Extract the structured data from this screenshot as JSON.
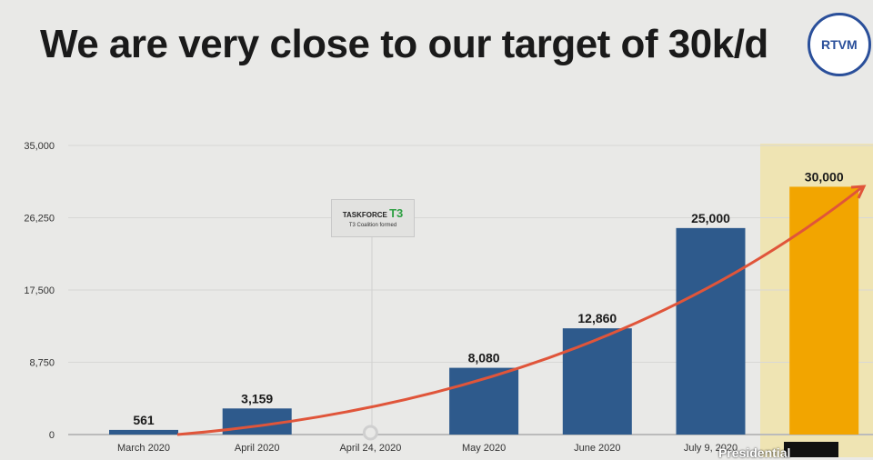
{
  "title": "We are very close to our target of 30k/d",
  "annotation": {
    "logo_text": "TASKFORCE T3",
    "caption": "T3 Coalition formed",
    "at": "April 24, 2020"
  },
  "broadcast": {
    "logo_text": "RTVM",
    "bug_text": "Presidential"
  },
  "chart_data": {
    "type": "bar",
    "title": "We are very close to our target of 30k/d",
    "categories": [
      "March 2020",
      "April 2020",
      "April 24, 2020",
      "May 2020",
      "June 2020",
      "July 9, 2020",
      ""
    ],
    "values": [
      561,
      3159,
      null,
      8080,
      12860,
      25000,
      30000
    ],
    "labels": [
      "561",
      "3,159",
      "",
      "8,080",
      "12,860",
      "25,000",
      "30,000"
    ],
    "yticks": [
      0,
      8750,
      17500,
      26250,
      35000
    ],
    "ytick_labels": [
      "0",
      "8,750",
      "17,500",
      "26,250",
      "35,000"
    ],
    "ylim": [
      0,
      35000
    ],
    "grid": true,
    "trend": "exponential curve rising from March 2020 to target",
    "colors": {
      "bar": "#2e5a8c",
      "target": "#f2a500",
      "highlight": "#efe4b3",
      "trend": "#e0553a"
    }
  }
}
